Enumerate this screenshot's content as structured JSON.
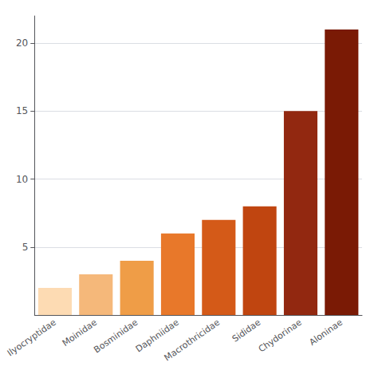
{
  "chart_data": {
    "type": "bar",
    "categories": [
      "Ilyocryptidae",
      "Moinidae",
      "Bosminidae",
      "Daphniidae",
      "Macrothricidae",
      "Sididae",
      "Chydorinae",
      "Aloninae"
    ],
    "values": [
      2,
      3,
      4,
      6,
      7,
      8,
      15,
      21
    ],
    "colors": [
      "#FDDBB3",
      "#F5B87A",
      "#EF9D47",
      "#E8782A",
      "#D45A18",
      "#C04510",
      "#922810",
      "#7A1A05"
    ],
    "ylim": [
      0,
      22
    ],
    "yticks": [
      5,
      10,
      15,
      20
    ],
    "grid": true
  }
}
